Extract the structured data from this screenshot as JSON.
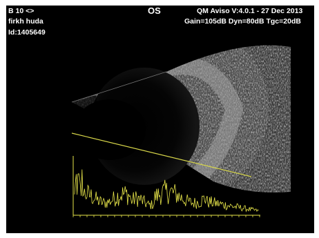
{
  "header": {
    "probe_label": "B 10 <>",
    "patient_name": "firkh huda",
    "patient_id": "Id:1405649",
    "eye": "OS",
    "version": "QM  Aviso V:4.0.1 - 27 Dec 2013",
    "settings": "Gain=105dB Dyn=80dB Tgc=20dB"
  },
  "colors": {
    "background": "#000000",
    "text": "#ffffff",
    "a_scan": "#e8e64a",
    "scan_line": "#d9d84a"
  }
}
